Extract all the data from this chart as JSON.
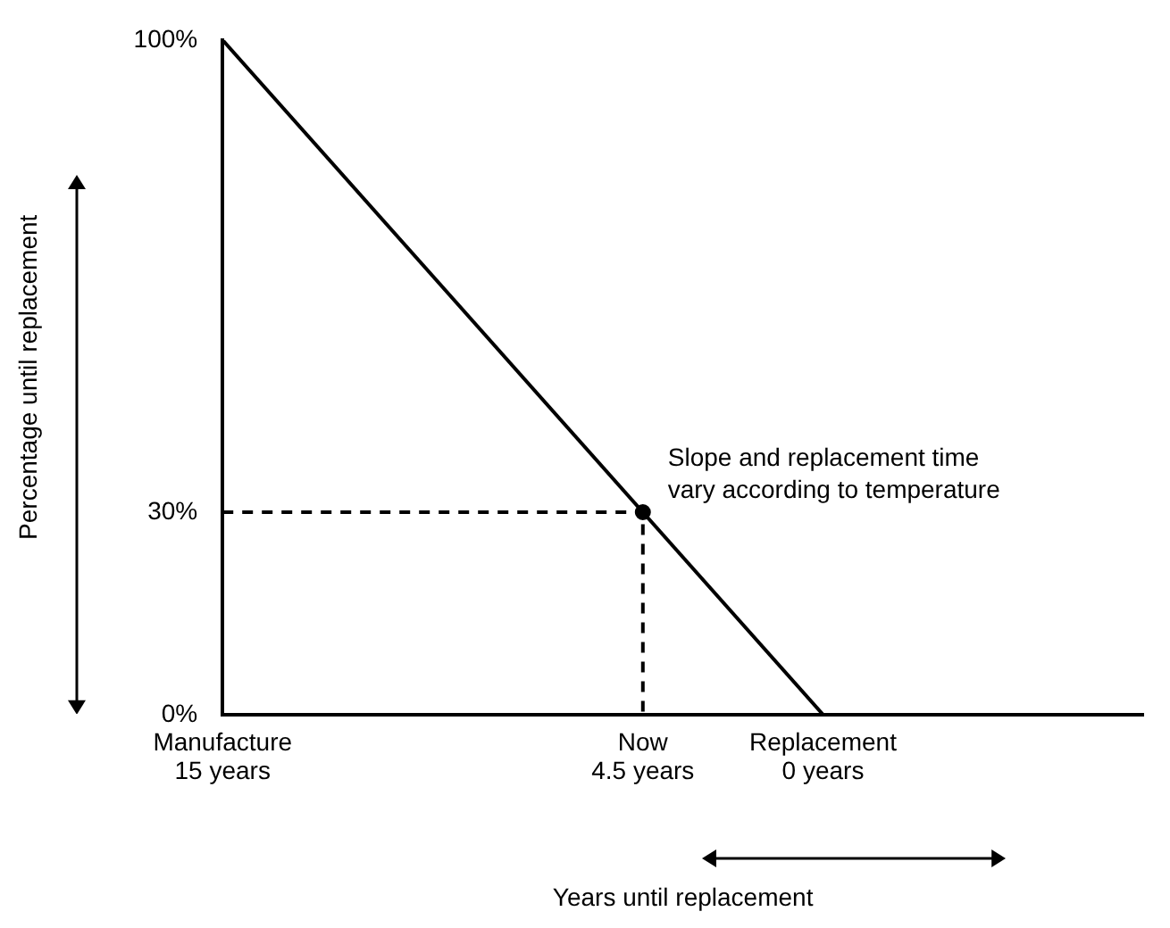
{
  "chart_data": {
    "type": "line",
    "xlabel": "Years until replacement",
    "ylabel": "Percentage until replacement",
    "xlim": [
      15,
      -8
    ],
    "xticks": [
      {
        "value": 15,
        "label": "15 years"
      },
      {
        "value": 4.5,
        "label": "4.5 years"
      },
      {
        "value": 0,
        "label": "0 years"
      }
    ],
    "ylim": [
      0,
      100
    ],
    "yticks": [
      {
        "value": 0,
        "label": "0%"
      },
      {
        "value": 30,
        "label": "30%"
      },
      {
        "value": 100,
        "label": "100%"
      }
    ],
    "series": [
      {
        "type": "line",
        "color": "#000000",
        "x": [
          15,
          0
        ],
        "values": [
          100,
          0
        ],
        "marker": "none",
        "line_style": "solid"
      },
      {
        "type": "line",
        "color": "#000000",
        "x": [
          15,
          4.5,
          4.5
        ],
        "values": [
          30,
          30,
          0
        ],
        "marker": "none",
        "line_style": "dashed"
      },
      {
        "type": "scatter",
        "color": "#000000",
        "x": [
          4.5
        ],
        "values": [
          30
        ],
        "marker": "circle"
      }
    ],
    "annotations": [
      {
        "text": "Slope and replacement time\nvary according to temperature",
        "x": 4.5,
        "y": 30
      },
      "Manufacture",
      "Now",
      "Replacement"
    ],
    "grid": false,
    "legend": false
  }
}
